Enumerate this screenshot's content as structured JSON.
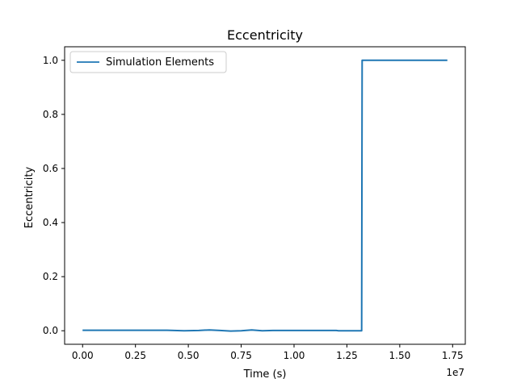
{
  "chart_data": {
    "type": "line",
    "title": "Eccentricity",
    "xlabel": "Time (s)",
    "ylabel": "Eccentricity",
    "x_offset_label": "1e7",
    "xlim": [
      -850000,
      18100000
    ],
    "ylim": [
      -0.05,
      1.05
    ],
    "x_ticks": [
      0,
      2500000,
      5000000,
      7500000,
      10000000,
      12500000,
      15000000,
      17500000
    ],
    "x_tick_labels": [
      "0.00",
      "0.25",
      "0.50",
      "0.75",
      "1.00",
      "1.25",
      "1.50",
      "1.75"
    ],
    "y_ticks": [
      0.0,
      0.2,
      0.4,
      0.6,
      0.8,
      1.0
    ],
    "y_tick_labels": [
      "0.0",
      "0.2",
      "0.4",
      "0.6",
      "0.8",
      "1.0"
    ],
    "grid": false,
    "legend_position": "upper-left",
    "series": [
      {
        "name": "Simulation Elements",
        "color": "#1f77b4",
        "x": [
          0,
          1000000,
          2000000,
          3000000,
          4000000,
          4800000,
          5500000,
          6000000,
          6500000,
          7000000,
          7500000,
          8000000,
          8500000,
          9000000,
          10000000,
          11000000,
          12000000,
          12100000,
          13200000,
          13220000,
          14000000,
          15000000,
          16000000,
          17250000
        ],
        "y": [
          0.002,
          0.002,
          0.002,
          0.002,
          0.002,
          0.0,
          0.001,
          0.003,
          0.001,
          -0.001,
          0.0,
          0.003,
          0.0,
          0.001,
          0.001,
          0.001,
          0.001,
          0.0,
          0.0,
          1.0,
          1.0,
          1.0,
          1.0,
          1.0
        ]
      }
    ]
  }
}
